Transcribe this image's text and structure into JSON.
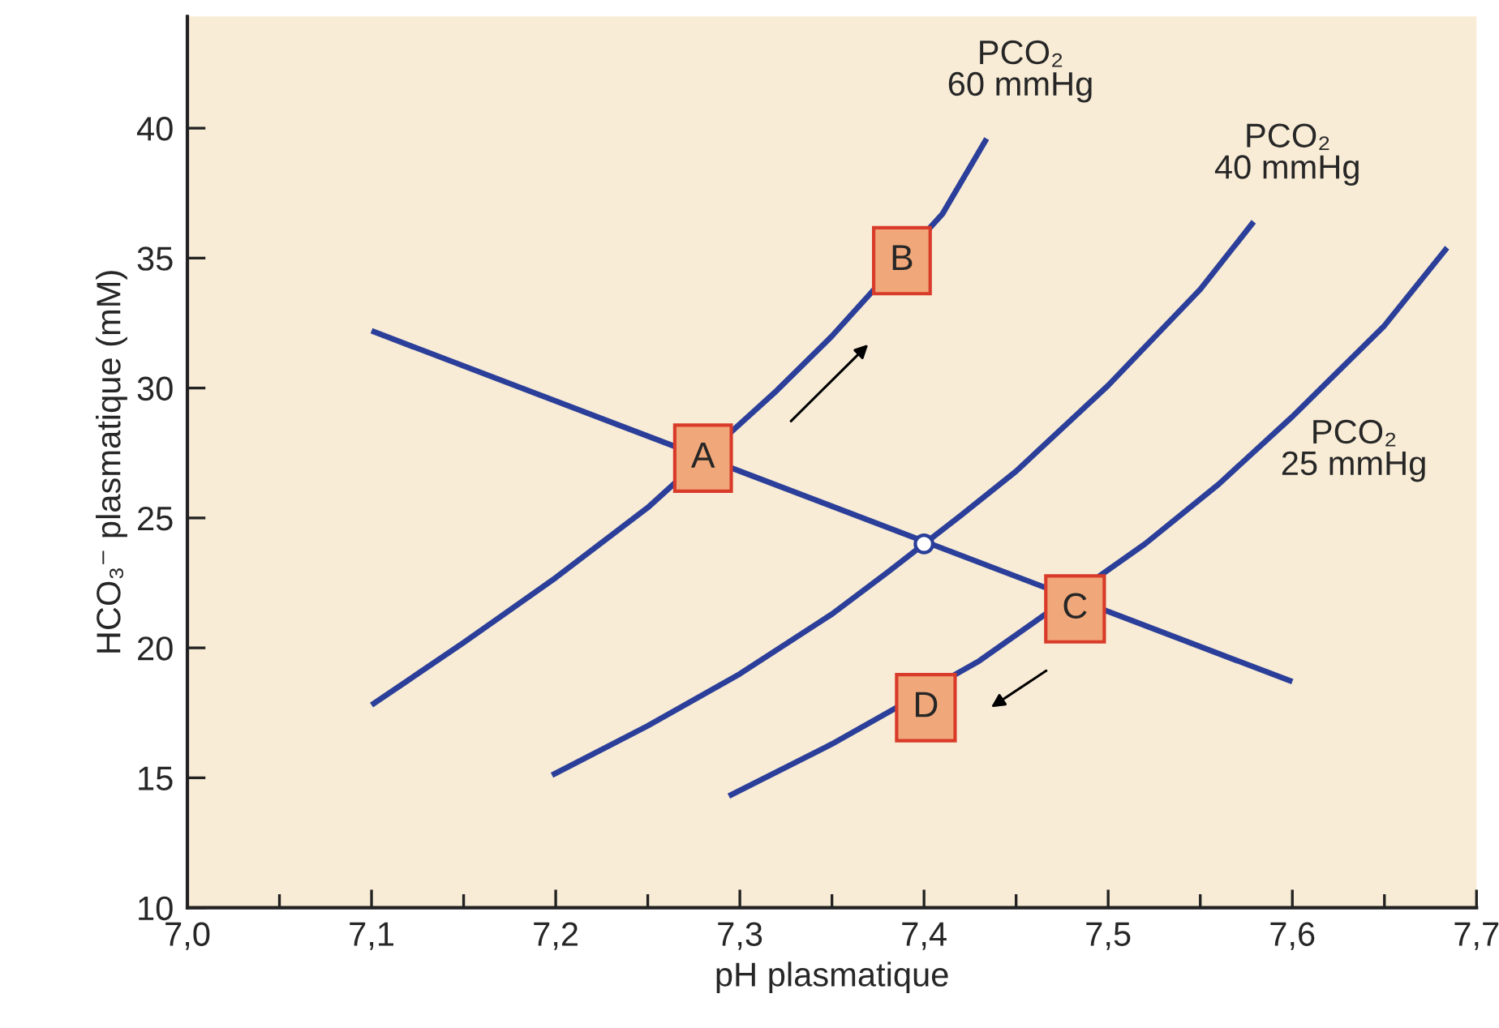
{
  "chart_data": {
    "type": "line",
    "xlabel": "pH plasmatique",
    "ylabel": "HCO₃⁻ plasmatique (mM)",
    "xlim": [
      7.0,
      7.7
    ],
    "ylim": [
      10,
      44.3
    ],
    "xticks": [
      {
        "value": 7.0,
        "label": "7,0"
      },
      {
        "value": 7.05,
        "label": null
      },
      {
        "value": 7.1,
        "label": "7,1"
      },
      {
        "value": 7.15,
        "label": null
      },
      {
        "value": 7.2,
        "label": "7,2"
      },
      {
        "value": 7.25,
        "label": null
      },
      {
        "value": 7.3,
        "label": "7,3"
      },
      {
        "value": 7.35,
        "label": null
      },
      {
        "value": 7.4,
        "label": "7,4"
      },
      {
        "value": 7.45,
        "label": null
      },
      {
        "value": 7.5,
        "label": "7,5"
      },
      {
        "value": 7.55,
        "label": null
      },
      {
        "value": 7.6,
        "label": "7,6"
      },
      {
        "value": 7.65,
        "label": null
      },
      {
        "value": 7.7,
        "label": "7,7"
      }
    ],
    "yticks": [
      10,
      15,
      20,
      25,
      30,
      35,
      40
    ],
    "grid": false,
    "legend": false,
    "marker": "none",
    "line_style": "solid",
    "series": [
      {
        "name": "PCO₂\n60 mmHg",
        "color": "#2b3f9a",
        "x": [
          7.1,
          7.15,
          7.2,
          7.25,
          7.32,
          7.35,
          7.41,
          7.434
        ],
        "values": [
          17.8,
          20.2,
          22.7,
          25.4,
          29.9,
          32.0,
          36.7,
          39.6
        ]
      },
      {
        "name": "PCO₂\n40 mmHg",
        "color": "#2b3f9a",
        "x": [
          7.198,
          7.25,
          7.3,
          7.35,
          7.38,
          7.42,
          7.45,
          7.5,
          7.55,
          7.579
        ],
        "values": [
          15.1,
          17.0,
          19.0,
          21.3,
          22.9,
          25.1,
          26.8,
          30.1,
          33.8,
          36.4
        ]
      },
      {
        "name": "PCO₂\n25 mmHg",
        "color": "#2b3f9a",
        "x": [
          7.294,
          7.35,
          7.43,
          7.52,
          7.56,
          7.6,
          7.65,
          7.684
        ],
        "values": [
          14.3,
          16.3,
          19.5,
          24.0,
          26.3,
          28.9,
          32.4,
          35.4
        ]
      },
      {
        "color": "#2b3f9a",
        "x": [
          7.1,
          7.6
        ],
        "values": [
          32.2,
          18.7
        ]
      },
      {
        "type": "scatter",
        "marker": "circle",
        "color": "#2b3f9a",
        "x": [
          7.4
        ],
        "values": [
          24.0
        ]
      }
    ],
    "annotations": [
      {
        "text": "A",
        "x": 7.28,
        "y": 27.3
      },
      {
        "text": "B",
        "x": 7.388,
        "y": 34.9
      },
      {
        "text": "C",
        "x": 7.482,
        "y": 21.5
      },
      {
        "text": "D",
        "x": 7.401,
        "y": 17.7
      }
    ]
  }
}
